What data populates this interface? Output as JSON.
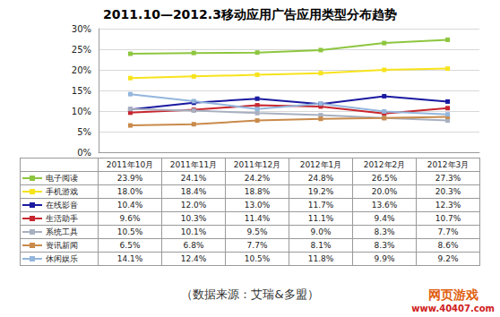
{
  "chart_data": {
    "type": "line",
    "title": "2011.10—2012.3移动应用广告应用类型分布趋势",
    "categories": [
      "2011年10月",
      "2011年11月",
      "2011年12月",
      "2012年1月",
      "2012年2月",
      "2012年3月"
    ],
    "series": [
      {
        "name": "电子阅读",
        "color": "#8dc63f",
        "values": [
          23.9,
          24.1,
          24.2,
          24.8,
          26.5,
          27.3
        ],
        "value_labels": [
          "23.9%",
          "24.1%",
          "24.2%",
          "24.8%",
          "26.5%",
          "27.3%"
        ]
      },
      {
        "name": "手机游戏",
        "color": "#f7e31c",
        "values": [
          18.0,
          18.4,
          18.8,
          19.2,
          20.0,
          20.3
        ],
        "value_labels": [
          "18.0%",
          "18.4%",
          "18.8%",
          "19.2%",
          "20.0%",
          "20.3%"
        ]
      },
      {
        "name": "在线影音",
        "color": "#1a1aa0",
        "values": [
          10.4,
          12.0,
          13.0,
          11.7,
          13.6,
          12.3
        ],
        "value_labels": [
          "10.4%",
          "12.0%",
          "13.0%",
          "11.7%",
          "13.6%",
          "12.3%"
        ]
      },
      {
        "name": "生活助手",
        "color": "#c8262e",
        "values": [
          9.6,
          10.3,
          11.4,
          11.1,
          9.4,
          10.7
        ],
        "value_labels": [
          "9.6%",
          "10.3%",
          "11.4%",
          "11.1%",
          "9.4%",
          "10.7%"
        ]
      },
      {
        "name": "系统工具",
        "color": "#a8b0c0",
        "values": [
          10.5,
          10.1,
          9.5,
          9.0,
          8.3,
          7.7
        ],
        "value_labels": [
          "10.5%",
          "10.1%",
          "9.5%",
          "9.0%",
          "8.3%",
          "7.7%"
        ]
      },
      {
        "name": "资讯新闻",
        "color": "#c98a4b",
        "values": [
          6.5,
          6.8,
          7.7,
          8.1,
          8.3,
          8.6
        ],
        "value_labels": [
          "6.5%",
          "6.8%",
          "7.7%",
          "8.1%",
          "8.3%",
          "8.6%"
        ]
      },
      {
        "name": "休闲娱乐",
        "color": "#94b6dc",
        "values": [
          14.1,
          12.4,
          10.5,
          11.8,
          9.9,
          9.2
        ],
        "value_labels": [
          "14.1%",
          "12.4%",
          "10.5%",
          "11.8%",
          "9.9%",
          "9.2%"
        ]
      }
    ],
    "ylim": [
      0,
      30
    ],
    "yticks": [
      {
        "value": 0,
        "label": "0%"
      },
      {
        "value": 5,
        "label": "5%"
      },
      {
        "value": 10,
        "label": "10%"
      },
      {
        "value": 15,
        "label": "15%"
      },
      {
        "value": 20,
        "label": "20%"
      },
      {
        "value": 25,
        "label": "25%"
      },
      {
        "value": 30,
        "label": "30%"
      }
    ],
    "grid": true,
    "marker": "square",
    "note": "（数据来源：艾瑞&多盟）",
    "watermark": [
      "网页游戏",
      "www.40407.com"
    ]
  }
}
